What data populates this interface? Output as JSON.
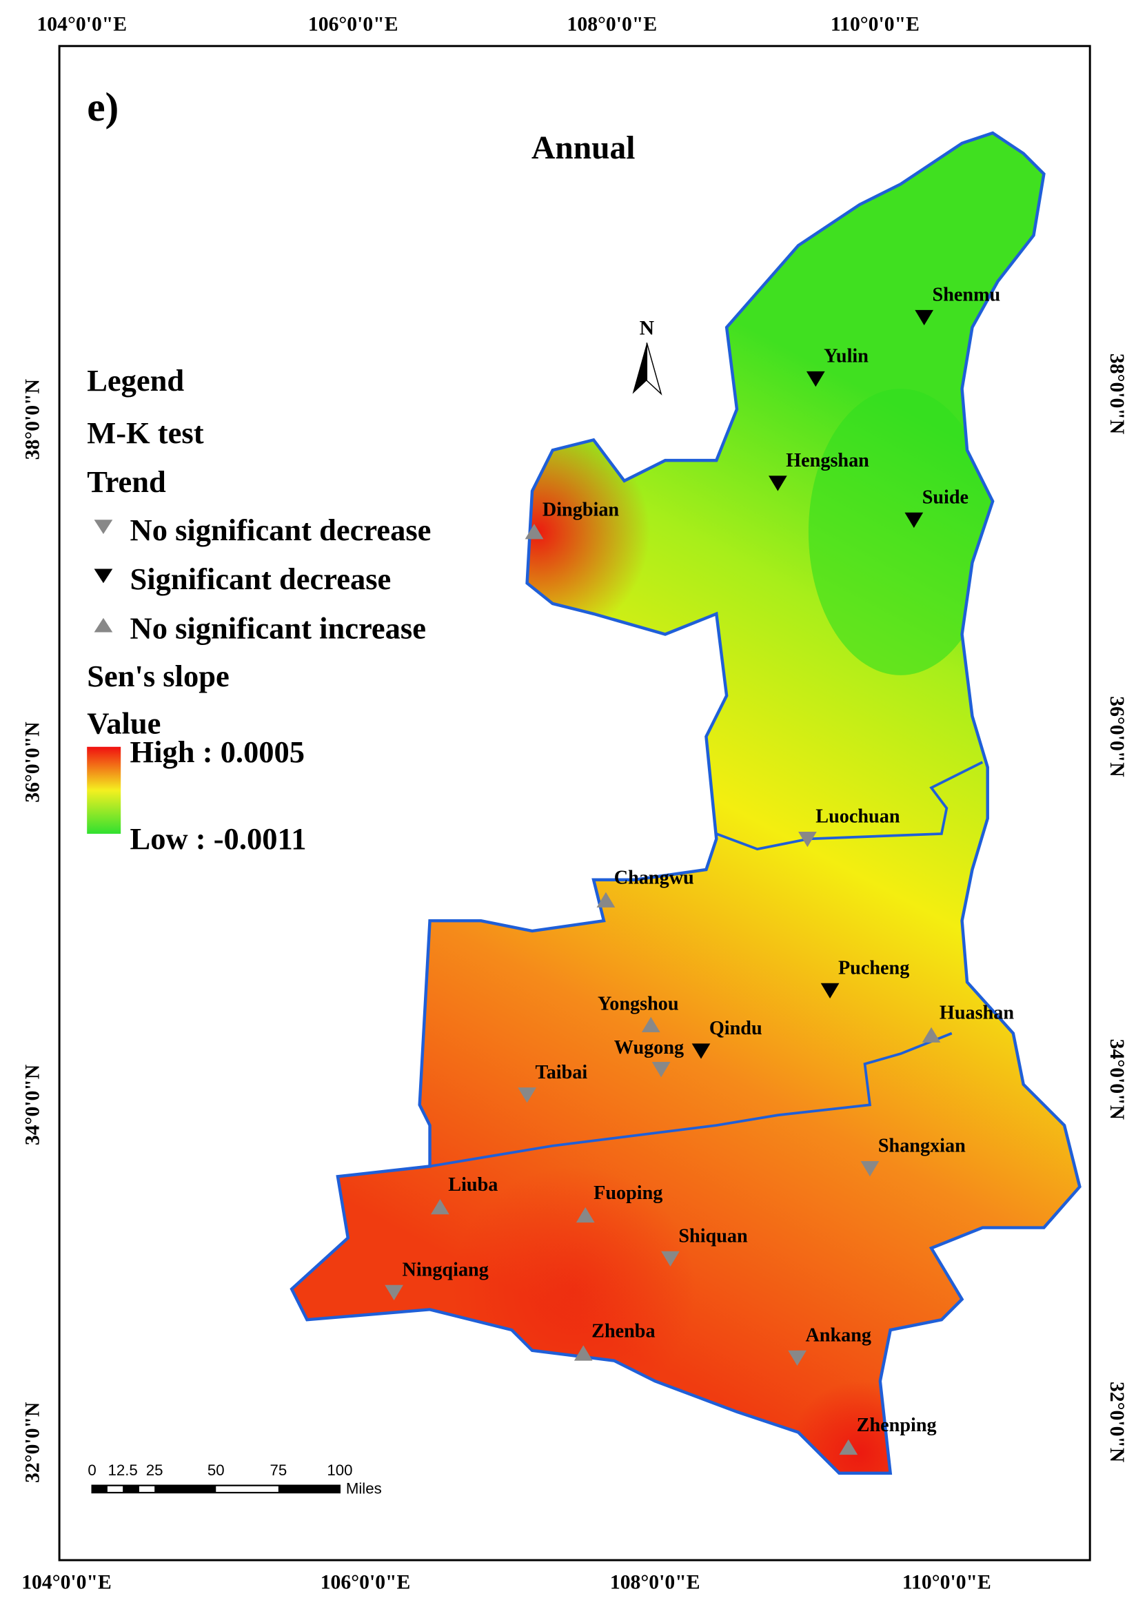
{
  "panel_label": "e)",
  "title": "Annual",
  "north": "N",
  "legend": {
    "heading": "Legend",
    "test": "M-K test",
    "trend": "Trend",
    "items": [
      "No significant decrease",
      "Significant decrease",
      "No significant increase"
    ],
    "slope": "Sen's slope",
    "value": "Value",
    "high": "High : 0.0005",
    "low": "Low : -0.0011"
  },
  "graticule": {
    "top": [
      "104°0'0\"E",
      "106°0'0\"E",
      "108°0'0\"E",
      "110°0'0\"E"
    ],
    "bottom": [
      "104°0'0\"E",
      "106°0'0\"E",
      "108°0'0\"E",
      "110°0'0\"E"
    ],
    "left": [
      "38°0'0\"N",
      "36°0'0\"N",
      "34°0'0\"N",
      "32°0'0\"N"
    ],
    "right": [
      "38°0'0\"N",
      "36°0'0\"N",
      "34°0'0\"N",
      "32°0'0\"N"
    ]
  },
  "scale": {
    "ticks": [
      "0",
      "12.5",
      "25",
      "50",
      "75",
      "100"
    ],
    "unit": "Miles"
  },
  "stations": [
    "Shenmu",
    "Yulin",
    "Hengshan",
    "Suide",
    "Dingbian",
    "Luochuan",
    "Changwu",
    "Pucheng",
    "Yongshou",
    "Qindu",
    "Huashan",
    "Wugong",
    "Taibai",
    "Shangxian",
    "Liuba",
    "Fuoping",
    "Shiquan",
    "Ningqiang",
    "Zhenba",
    "Ankang",
    "Zhenping"
  ]
}
